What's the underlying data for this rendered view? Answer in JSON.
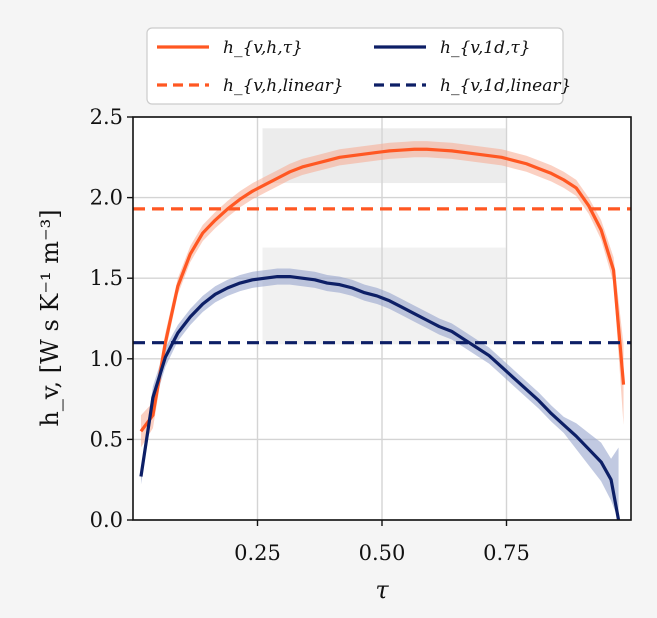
{
  "chart_data": {
    "type": "line",
    "xlabel": "τ",
    "ylabel": "h_v, [W s K⁻¹ m⁻³]",
    "xlim": [
      0.0,
      1.0
    ],
    "ylim": [
      0.0,
      2.5
    ],
    "xticks": [
      0.25,
      0.5,
      0.75
    ],
    "xtick_labels": [
      "0.25",
      "0.50",
      "0.75"
    ],
    "yticks": [
      0.0,
      0.5,
      1.0,
      1.5,
      2.0,
      2.5
    ],
    "ytick_labels": [
      "0.0",
      "0.5",
      "1.0",
      "1.5",
      "2.0",
      "2.5"
    ],
    "grid": true,
    "legend_position": "top-outside",
    "series": [
      {
        "name": "h_{v,h,τ}",
        "style": "solid",
        "color": "#ff5722",
        "band_color": "#f7a98f",
        "x": [
          0.016,
          0.04,
          0.065,
          0.09,
          0.115,
          0.14,
          0.165,
          0.19,
          0.215,
          0.24,
          0.265,
          0.29,
          0.315,
          0.34,
          0.365,
          0.39,
          0.415,
          0.44,
          0.465,
          0.49,
          0.515,
          0.54,
          0.565,
          0.59,
          0.615,
          0.64,
          0.665,
          0.69,
          0.715,
          0.74,
          0.765,
          0.79,
          0.815,
          0.84,
          0.865,
          0.89,
          0.915,
          0.94,
          0.965,
          0.985
        ],
        "y": [
          0.55,
          0.65,
          1.1,
          1.45,
          1.65,
          1.78,
          1.86,
          1.93,
          1.99,
          2.04,
          2.08,
          2.12,
          2.16,
          2.19,
          2.21,
          2.23,
          2.25,
          2.26,
          2.27,
          2.28,
          2.29,
          2.295,
          2.3,
          2.3,
          2.295,
          2.29,
          2.28,
          2.27,
          2.26,
          2.25,
          2.23,
          2.21,
          2.18,
          2.15,
          2.11,
          2.06,
          1.95,
          1.8,
          1.55,
          0.84
        ],
        "band": [
          0.1,
          0.08,
          0.06,
          0.05,
          0.05,
          0.05,
          0.05,
          0.05,
          0.05,
          0.05,
          0.05,
          0.05,
          0.05,
          0.05,
          0.05,
          0.05,
          0.05,
          0.05,
          0.05,
          0.05,
          0.05,
          0.05,
          0.05,
          0.05,
          0.05,
          0.05,
          0.05,
          0.05,
          0.05,
          0.05,
          0.05,
          0.05,
          0.05,
          0.05,
          0.05,
          0.05,
          0.05,
          0.06,
          0.08,
          0.25
        ]
      },
      {
        "name": "h_{v,h,linear}",
        "style": "dashed",
        "color": "#ff5722",
        "x": [
          0.0,
          1.0
        ],
        "y": [
          1.93,
          1.93
        ]
      },
      {
        "name": "h_{v,1d,τ}",
        "style": "solid",
        "color": "#0d1f66",
        "band_color": "#8e9cc9",
        "x": [
          0.016,
          0.04,
          0.065,
          0.09,
          0.115,
          0.14,
          0.165,
          0.19,
          0.215,
          0.24,
          0.265,
          0.29,
          0.315,
          0.34,
          0.365,
          0.39,
          0.415,
          0.44,
          0.465,
          0.49,
          0.515,
          0.54,
          0.565,
          0.59,
          0.615,
          0.64,
          0.665,
          0.69,
          0.715,
          0.74,
          0.765,
          0.79,
          0.815,
          0.84,
          0.865,
          0.89,
          0.915,
          0.94,
          0.96,
          0.975
        ],
        "y": [
          0.27,
          0.76,
          1.01,
          1.16,
          1.26,
          1.34,
          1.4,
          1.44,
          1.47,
          1.49,
          1.5,
          1.51,
          1.51,
          1.5,
          1.49,
          1.47,
          1.46,
          1.44,
          1.41,
          1.39,
          1.36,
          1.32,
          1.28,
          1.24,
          1.2,
          1.17,
          1.12,
          1.07,
          1.02,
          0.95,
          0.88,
          0.81,
          0.74,
          0.66,
          0.59,
          0.52,
          0.44,
          0.36,
          0.25,
          0.0
        ],
        "band": [
          0.05,
          0.07,
          0.06,
          0.05,
          0.05,
          0.05,
          0.05,
          0.05,
          0.05,
          0.05,
          0.05,
          0.05,
          0.05,
          0.05,
          0.05,
          0.05,
          0.05,
          0.05,
          0.05,
          0.05,
          0.05,
          0.05,
          0.05,
          0.05,
          0.05,
          0.05,
          0.05,
          0.05,
          0.05,
          0.05,
          0.05,
          0.05,
          0.05,
          0.05,
          0.05,
          0.08,
          0.1,
          0.12,
          0.13,
          0.45
        ]
      },
      {
        "name": "h_{v,1d,linear}",
        "style": "dashed",
        "color": "#0d1f66",
        "x": [
          0.0,
          1.0
        ],
        "y": [
          1.1,
          1.1
        ]
      }
    ],
    "shaded_regions": [
      {
        "x": [
          0.26,
          0.75
        ],
        "y": [
          2.09,
          2.43
        ],
        "color": "#ececec"
      },
      {
        "x": [
          0.26,
          0.75
        ],
        "y": [
          1.09,
          1.69
        ],
        "color": "#f1f1f1"
      }
    ]
  }
}
